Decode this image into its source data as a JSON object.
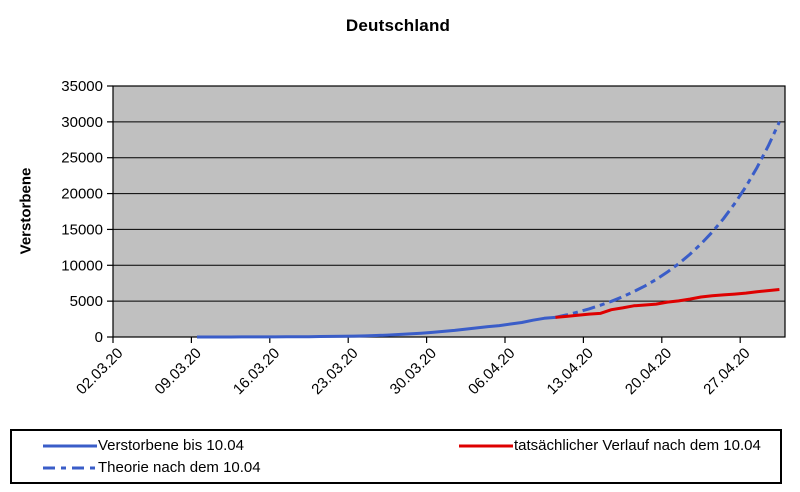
{
  "chart_data": {
    "type": "line",
    "title": "Deutschland",
    "xlabel": "",
    "ylabel": "Verstorbene",
    "ylim": [
      0,
      35000
    ],
    "ytick_step": 5000,
    "yticks": [
      0,
      5000,
      10000,
      15000,
      20000,
      25000,
      30000,
      35000
    ],
    "x_tick_labels": [
      "02.03.20",
      "09.03.20",
      "16.03.20",
      "23.03.20",
      "30.03.20",
      "06.04.20",
      "13.04.20",
      "20.04.20",
      "27.04.20"
    ],
    "x_count": 60,
    "tick_every": 7,
    "grid": "horizontal",
    "colors": {
      "plot_background": "#C0C0C0",
      "grid_line": "#000000",
      "axis_line": "#000000",
      "blue": "#3A5DC8",
      "red": "#DE0000"
    },
    "series": [
      {
        "name": "Verstorbene bis 10.04",
        "color": "#3A5DC8",
        "style": "solid",
        "start_index": 7,
        "values": [
          2,
          2,
          3,
          3,
          7,
          9,
          11,
          17,
          24,
          28,
          44,
          67,
          84,
          94,
          123,
          157,
          206,
          267,
          342,
          433,
          533,
          645,
          775,
          920,
          1107,
          1275,
          1444,
          1584,
          1810,
          2016,
          2349,
          2607,
          2736
        ]
      },
      {
        "name": "Theorie nach dem 10.04",
        "color": "#3A5DC8",
        "style": "dash_dot",
        "start_index": 39,
        "values": [
          2736,
          3084,
          3476,
          3918,
          4417,
          4979,
          5612,
          6326,
          7131,
          8038,
          9061,
          10213,
          11513,
          12977,
          14628,
          16489,
          18587,
          20951,
          23616,
          26620,
          30000
        ]
      },
      {
        "name": "tatsächlicher Verlauf nach dem 10.04",
        "color": "#DE0000",
        "style": "solid",
        "start_index": 39,
        "values": [
          2736,
          2871,
          3022,
          3194,
          3294,
          3804,
          4052,
          4352,
          4459,
          4586,
          4862,
          5033,
          5279,
          5575,
          5760,
          5877,
          5976,
          6126,
          6314,
          6467,
          6623
        ]
      }
    ],
    "legend_position": "bottom"
  },
  "legend": {
    "items": [
      {
        "label": "Verstorbene bis 10.04",
        "color": "#3A5DC8",
        "dash": "solid"
      },
      {
        "label": "tatsächlicher Verlauf nach dem 10.04",
        "color": "#DE0000",
        "dash": "solid"
      },
      {
        "label": "Theorie nach dem 10.04",
        "color": "#3A5DC8",
        "dash": "dash_dot"
      }
    ]
  }
}
